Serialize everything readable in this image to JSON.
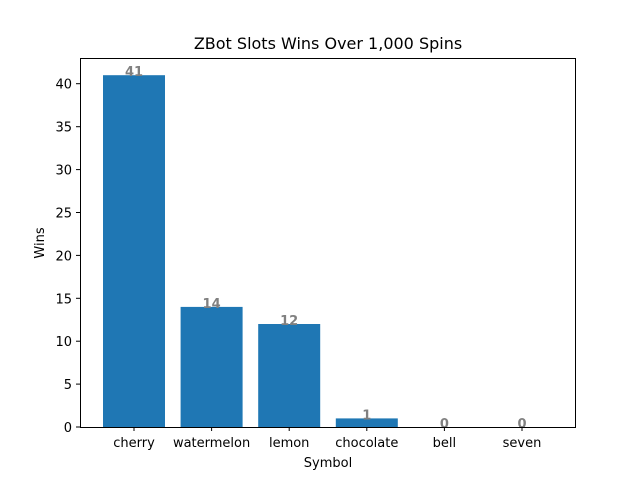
{
  "chart_data": {
    "type": "bar",
    "title": "ZBot Slots Wins Over 1,000 Spins",
    "xlabel": "Symbol",
    "ylabel": "Wins",
    "categories": [
      "cherry",
      "watermelon",
      "lemon",
      "chocolate",
      "bell",
      "seven"
    ],
    "values": [
      41,
      14,
      12,
      1,
      0,
      0
    ],
    "ylim": [
      0,
      43
    ],
    "yticks": [
      0,
      5,
      10,
      15,
      20,
      25,
      30,
      35,
      40
    ],
    "grid": false,
    "bar_color": "#1f77b4",
    "data_label_color": "#808080"
  }
}
